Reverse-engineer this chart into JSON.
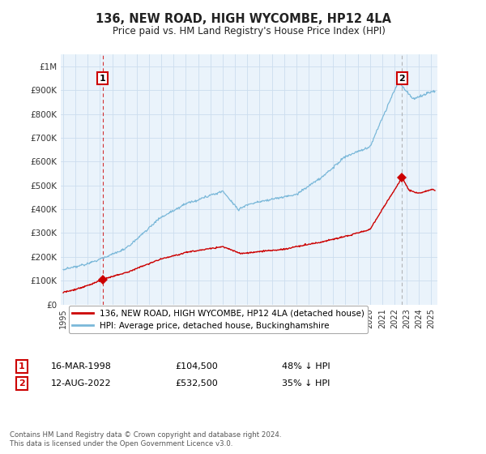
{
  "title": "136, NEW ROAD, HIGH WYCOMBE, HP12 4LA",
  "subtitle": "Price paid vs. HM Land Registry's House Price Index (HPI)",
  "ylabel_ticks": [
    "£0",
    "£100K",
    "£200K",
    "£300K",
    "£400K",
    "£500K",
    "£600K",
    "£700K",
    "£800K",
    "£900K",
    "£1M"
  ],
  "ytick_values": [
    0,
    100000,
    200000,
    300000,
    400000,
    500000,
    600000,
    700000,
    800000,
    900000,
    1000000
  ],
  "ylim": [
    0,
    1050000
  ],
  "xlim_start": 1994.8,
  "xlim_end": 2025.5,
  "legend_line1": "136, NEW ROAD, HIGH WYCOMBE, HP12 4LA (detached house)",
  "legend_line2": "HPI: Average price, detached house, Buckinghamshire",
  "point1_label": "1",
  "point1_date": "16-MAR-1998",
  "point1_price": "£104,500",
  "point1_hpi": "48% ↓ HPI",
  "point1_x": 1998.21,
  "point1_y": 104500,
  "point2_label": "2",
  "point2_date": "12-AUG-2022",
  "point2_price": "£532,500",
  "point2_hpi": "35% ↓ HPI",
  "point2_x": 2022.62,
  "point2_y": 532500,
  "footnote": "Contains HM Land Registry data © Crown copyright and database right 2024.\nThis data is licensed under the Open Government Licence v3.0.",
  "hpi_color": "#7ab8d9",
  "price_color": "#cc0000",
  "marker_color": "#cc0000",
  "grid_color": "#ccddee",
  "title_color": "#222222",
  "bg_color": "#ffffff",
  "plot_bg_color": "#eaf3fb"
}
